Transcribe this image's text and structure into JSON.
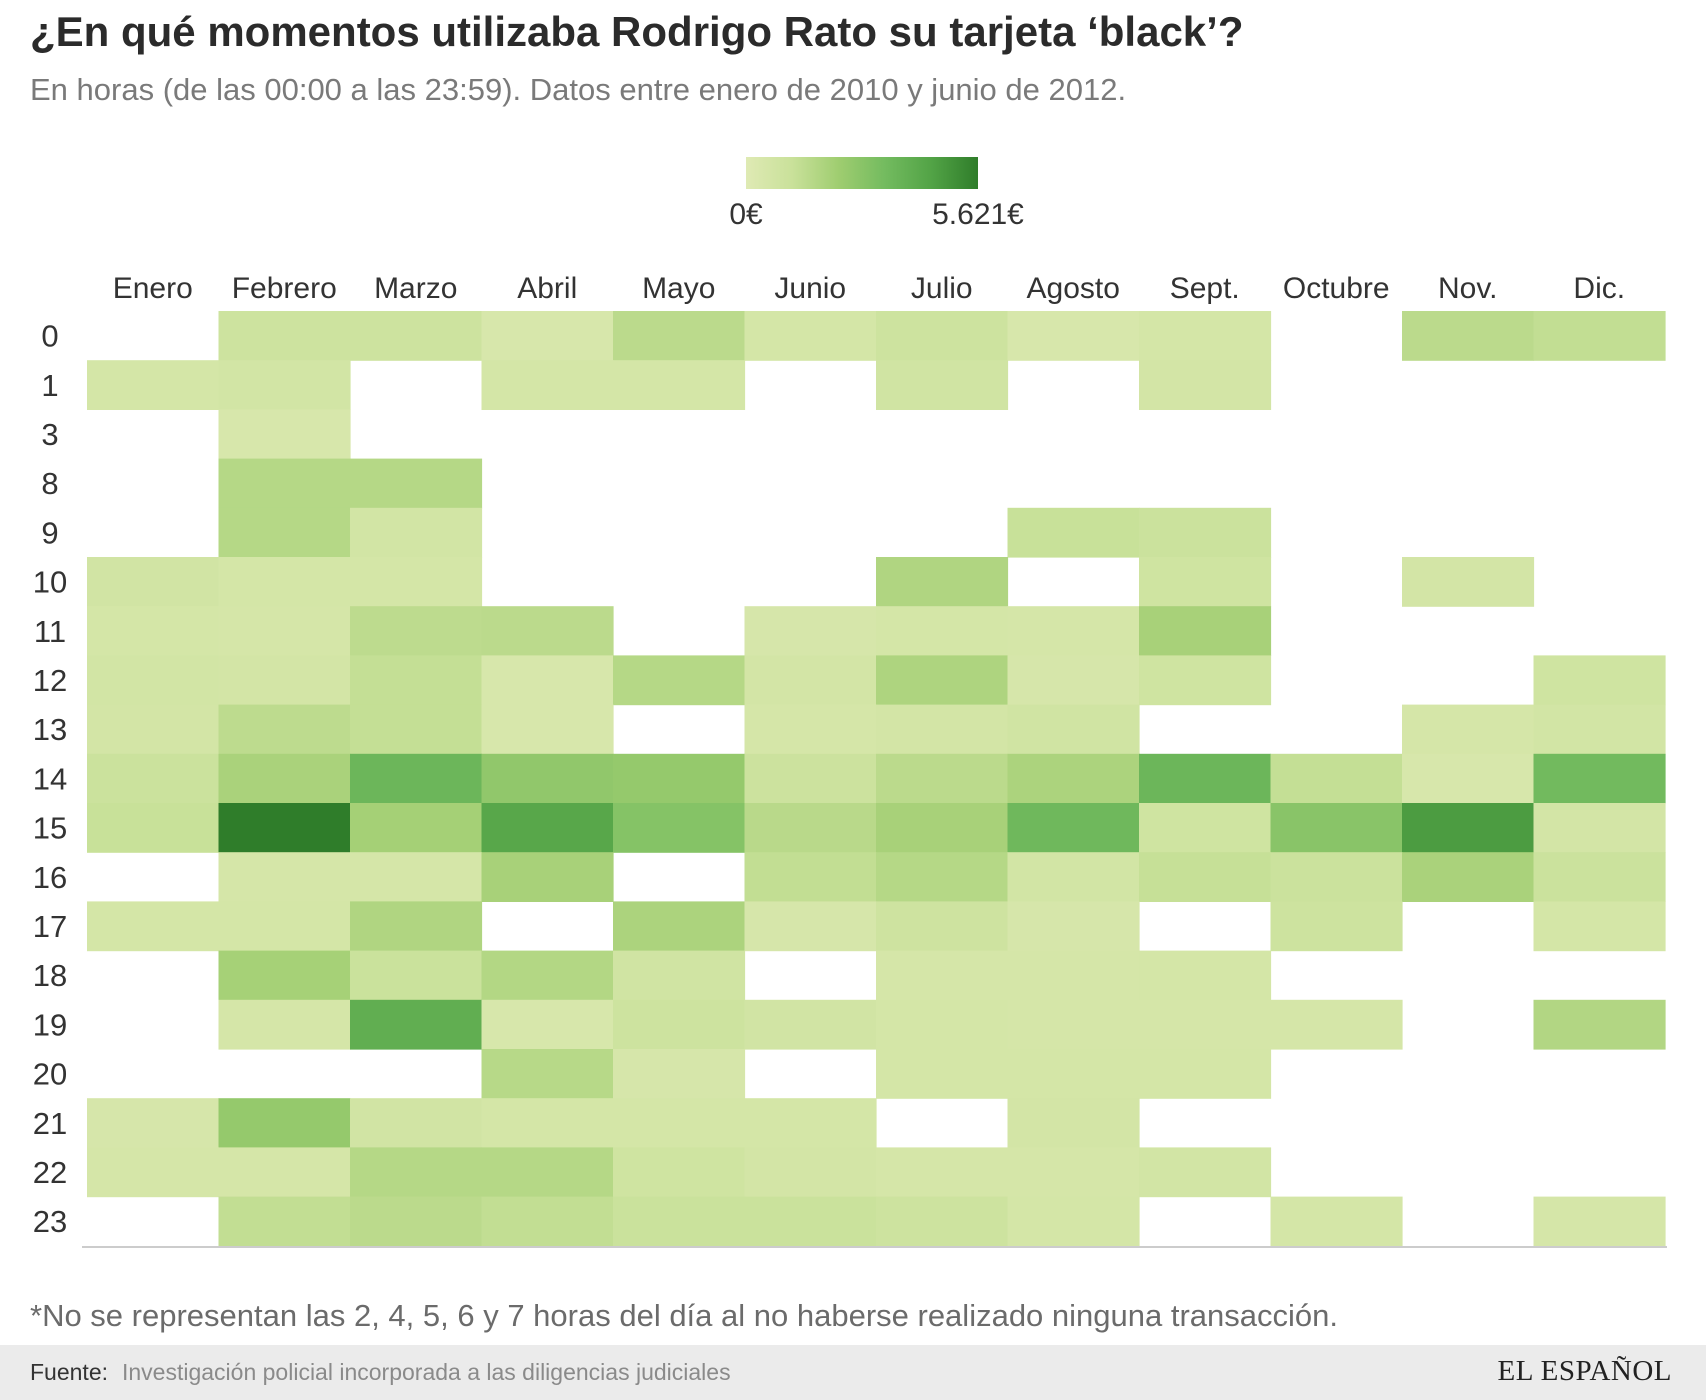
{
  "header": {
    "title": "¿En qué momentos utilizaba Rodrigo Rato su tarjeta ‘black’?",
    "subtitle": "En horas (de las 00:00 a las 23:59). Datos entre enero de 2010 y junio de 2012."
  },
  "chart_data": {
    "type": "heatmap",
    "x_categories": [
      "Enero",
      "Febrero",
      "Marzo",
      "Abril",
      "Mayo",
      "Junio",
      "Julio",
      "Agosto",
      "Sept.",
      "Octubre",
      "Nov.",
      "Dic."
    ],
    "y_categories": [
      "0",
      "1",
      "3",
      "8",
      "9",
      "10",
      "11",
      "12",
      "13",
      "14",
      "15",
      "16",
      "17",
      "18",
      "19",
      "20",
      "21",
      "22",
      "23"
    ],
    "values": [
      [
        null,
        900,
        900,
        400,
        1500,
        550,
        900,
        400,
        550,
        null,
        1500,
        1300
      ],
      [
        550,
        650,
        null,
        550,
        550,
        null,
        750,
        null,
        600,
        null,
        null,
        null
      ],
      [
        null,
        400,
        null,
        null,
        null,
        null,
        null,
        null,
        null,
        null,
        null,
        null
      ],
      [
        null,
        1650,
        1650,
        null,
        null,
        null,
        null,
        null,
        null,
        null,
        null,
        null
      ],
      [
        null,
        1650,
        650,
        null,
        null,
        null,
        null,
        1150,
        1000,
        null,
        null,
        null
      ],
      [
        700,
        550,
        550,
        null,
        null,
        null,
        1800,
        null,
        800,
        null,
        600,
        null
      ],
      [
        550,
        500,
        1450,
        1500,
        null,
        450,
        550,
        500,
        2000,
        null,
        null,
        null
      ],
      [
        650,
        600,
        1250,
        400,
        1650,
        600,
        1850,
        450,
        800,
        null,
        null,
        800
      ],
      [
        600,
        1450,
        1250,
        400,
        null,
        500,
        600,
        750,
        null,
        null,
        500,
        650
      ],
      [
        1000,
        1950,
        3600,
        2600,
        2500,
        950,
        1500,
        1900,
        3600,
        1250,
        400,
        3400
      ],
      [
        1150,
        5621,
        2100,
        4300,
        2900,
        1550,
        2000,
        3500,
        800,
        2800,
        4700,
        600
      ],
      [
        null,
        500,
        500,
        2000,
        null,
        1300,
        1650,
        650,
        1200,
        1000,
        1950,
        1000
      ],
      [
        550,
        550,
        1800,
        null,
        1900,
        450,
        850,
        450,
        null,
        900,
        null,
        550
      ],
      [
        null,
        2050,
        1050,
        1700,
        750,
        null,
        500,
        500,
        550,
        null,
        null,
        null
      ],
      [
        null,
        500,
        4000,
        400,
        900,
        700,
        550,
        500,
        500,
        500,
        null,
        1750
      ],
      [
        null,
        null,
        null,
        1600,
        450,
        null,
        550,
        550,
        550,
        null,
        null,
        null
      ],
      [
        450,
        2500,
        700,
        550,
        550,
        550,
        null,
        600,
        null,
        null,
        null,
        null
      ],
      [
        500,
        500,
        1650,
        1650,
        800,
        600,
        500,
        500,
        650,
        null,
        null,
        null
      ],
      [
        null,
        1300,
        1500,
        1300,
        1050,
        1050,
        900,
        550,
        null,
        550,
        null,
        500
      ]
    ],
    "value_range": [
      0,
      5621
    ],
    "legend": {
      "min_label": "0€",
      "max_label": "5.621€",
      "colors": [
        "#dfeab4",
        "#c9e19a",
        "#9fcd70",
        "#73bb5f",
        "#52a346",
        "#2f7d2a"
      ],
      "placement": "top-center"
    },
    "empty_color": "#ffffff",
    "axis_line_color": "#cccccc"
  },
  "note": "*No se representan las 2, 4, 5, 6 y 7 horas del día al no haberse realizado ninguna transacción.",
  "footer": {
    "source_label": "Fuente:",
    "source_text": "Investigación policial incorporada a las diligencias judiciales",
    "logo_text": "EL ESPAÑOL"
  }
}
